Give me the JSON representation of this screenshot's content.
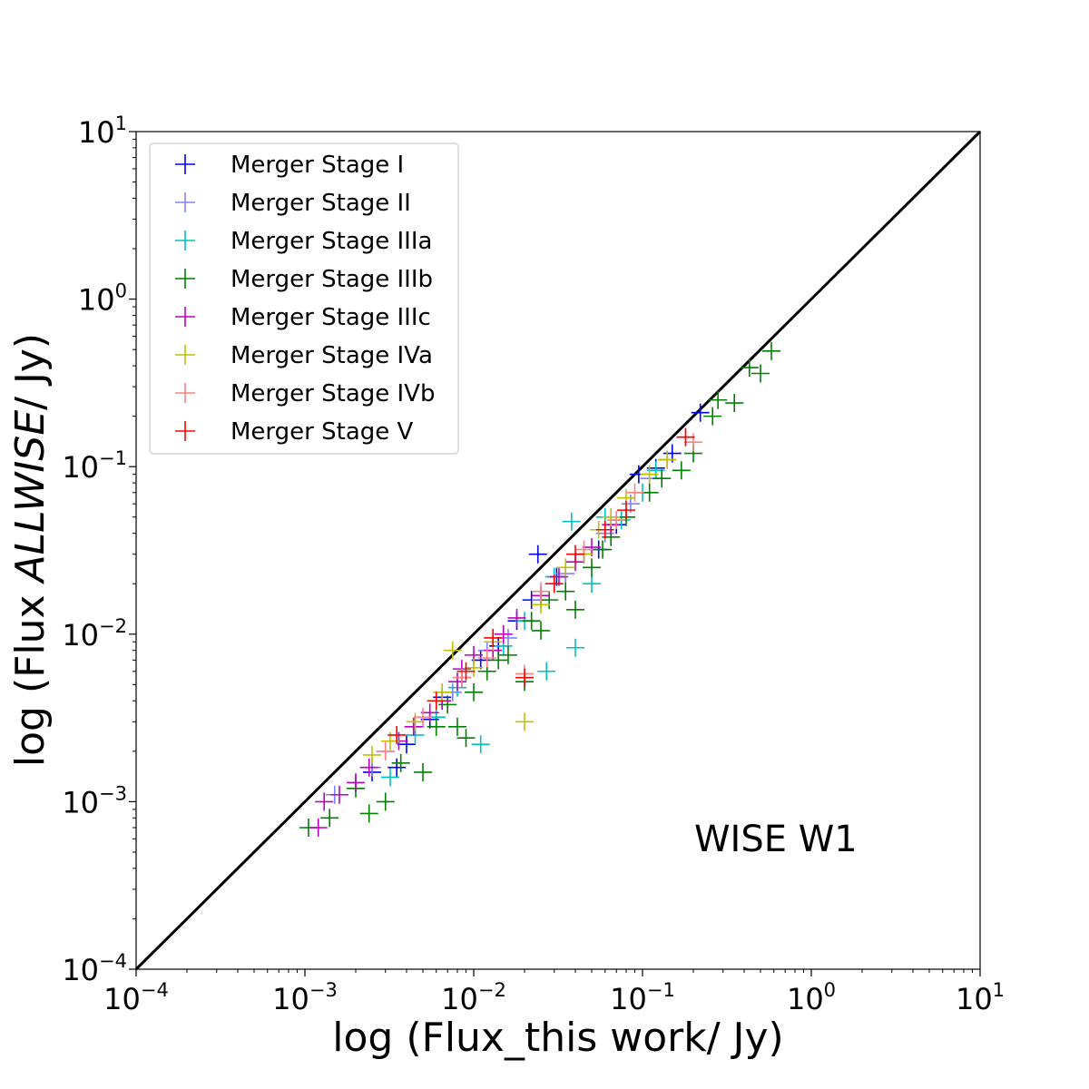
{
  "chart_data": {
    "type": "scatter",
    "xscale": "log",
    "yscale": "log",
    "xlim": [
      0.0001,
      10
    ],
    "ylim": [
      0.0001,
      10
    ],
    "xlabel": "log (Flux_this work/ Jy)",
    "ylabel_parts": [
      "log (Flux ",
      "ALLWISE",
      "/ Jy)"
    ],
    "annotation": "WISE W1",
    "reference_line": "y = x",
    "grid": false,
    "legend_position": "upper-left",
    "marker": "plus",
    "ticks": [
      {
        "base": "10",
        "exp": "−4"
      },
      {
        "base": "10",
        "exp": "−3"
      },
      {
        "base": "10",
        "exp": "−2"
      },
      {
        "base": "10",
        "exp": "−1"
      },
      {
        "base": "10",
        "exp": "0"
      },
      {
        "base": "10",
        "exp": "1"
      }
    ],
    "series": [
      {
        "name": "Merger Stage I",
        "color": "#0000ff",
        "points": [
          [
            0.0025,
            0.0015
          ],
          [
            0.0035,
            0.0016
          ],
          [
            0.004,
            0.0022
          ],
          [
            0.0055,
            0.0031
          ],
          [
            0.0065,
            0.0042
          ],
          [
            0.0085,
            0.0055
          ],
          [
            0.011,
            0.007
          ],
          [
            0.014,
            0.0085
          ],
          [
            0.018,
            0.012
          ],
          [
            0.024,
            0.03
          ],
          [
            0.022,
            0.016
          ],
          [
            0.031,
            0.022
          ],
          [
            0.045,
            0.03
          ],
          [
            0.055,
            0.032
          ],
          [
            0.07,
            0.045
          ],
          [
            0.095,
            0.09
          ],
          [
            0.12,
            0.098
          ],
          [
            0.15,
            0.12
          ],
          [
            0.22,
            0.21
          ]
        ]
      },
      {
        "name": "Merger Stage II",
        "color": "#8080ff",
        "points": [
          [
            0.0015,
            0.0011
          ],
          [
            0.0025,
            0.0016
          ],
          [
            0.0045,
            0.0028
          ],
          [
            0.0075,
            0.0045
          ],
          [
            0.012,
            0.008
          ],
          [
            0.016,
            0.0095
          ],
          [
            0.025,
            0.016
          ],
          [
            0.035,
            0.023
          ],
          [
            0.06,
            0.04
          ],
          [
            0.085,
            0.06
          ],
          [
            0.11,
            0.085
          ],
          [
            0.14,
            0.11
          ]
        ]
      },
      {
        "name": "Merger Stage IIIa",
        "color": "#00c0c0",
        "points": [
          [
            0.002,
            0.0013
          ],
          [
            0.0032,
            0.0014
          ],
          [
            0.0045,
            0.0025
          ],
          [
            0.006,
            0.0032
          ],
          [
            0.008,
            0.0048
          ],
          [
            0.011,
            0.0022
          ],
          [
            0.015,
            0.0085
          ],
          [
            0.02,
            0.012
          ],
          [
            0.027,
            0.006
          ],
          [
            0.04,
            0.0083
          ],
          [
            0.05,
            0.02
          ],
          [
            0.03,
            0.022
          ],
          [
            0.038,
            0.047
          ],
          [
            0.06,
            0.05
          ],
          [
            0.075,
            0.048
          ],
          [
            0.1,
            0.07
          ],
          [
            0.12,
            0.095
          ]
        ]
      },
      {
        "name": "Merger Stage IIIb",
        "color": "#008000",
        "points": [
          [
            0.00105,
            0.0007
          ],
          [
            0.0014,
            0.0008
          ],
          [
            0.002,
            0.0012
          ],
          [
            0.0024,
            0.00085
          ],
          [
            0.003,
            0.001
          ],
          [
            0.0037,
            0.0017
          ],
          [
            0.005,
            0.0015
          ],
          [
            0.006,
            0.0028
          ],
          [
            0.007,
            0.0038
          ],
          [
            0.008,
            0.0028
          ],
          [
            0.009,
            0.0024
          ],
          [
            0.01,
            0.0045
          ],
          [
            0.012,
            0.006
          ],
          [
            0.014,
            0.007
          ],
          [
            0.016,
            0.0075
          ],
          [
            0.02,
            0.0052
          ],
          [
            0.025,
            0.0105
          ],
          [
            0.022,
            0.012
          ],
          [
            0.028,
            0.016
          ],
          [
            0.035,
            0.018
          ],
          [
            0.04,
            0.014
          ],
          [
            0.05,
            0.025
          ],
          [
            0.058,
            0.032
          ],
          [
            0.065,
            0.038
          ],
          [
            0.08,
            0.05
          ],
          [
            0.11,
            0.07
          ],
          [
            0.13,
            0.085
          ],
          [
            0.17,
            0.095
          ],
          [
            0.2,
            0.12
          ],
          [
            0.26,
            0.2
          ],
          [
            0.28,
            0.25
          ],
          [
            0.35,
            0.24
          ],
          [
            0.43,
            0.39
          ],
          [
            0.5,
            0.36
          ],
          [
            0.58,
            0.49
          ]
        ]
      },
      {
        "name": "Merger Stage IIIc",
        "color": "#c000c0",
        "points": [
          [
            0.0012,
            0.0007
          ],
          [
            0.0013,
            0.001
          ],
          [
            0.0016,
            0.0011
          ],
          [
            0.002,
            0.0013
          ],
          [
            0.0024,
            0.0016
          ],
          [
            0.003,
            0.002
          ],
          [
            0.0036,
            0.0023
          ],
          [
            0.0044,
            0.0028
          ],
          [
            0.0055,
            0.0034
          ],
          [
            0.0065,
            0.004
          ],
          [
            0.008,
            0.0052
          ],
          [
            0.0085,
            0.0062
          ],
          [
            0.01,
            0.0075
          ],
          [
            0.013,
            0.008
          ],
          [
            0.015,
            0.01
          ],
          [
            0.018,
            0.0125
          ],
          [
            0.025,
            0.017
          ],
          [
            0.032,
            0.022
          ],
          [
            0.04,
            0.027
          ],
          [
            0.05,
            0.033
          ],
          [
            0.065,
            0.045
          ]
        ]
      },
      {
        "name": "Merger Stage IVa",
        "color": "#c0c000",
        "points": [
          [
            0.0025,
            0.0019
          ],
          [
            0.0032,
            0.0023
          ],
          [
            0.0045,
            0.003
          ],
          [
            0.0065,
            0.0045
          ],
          [
            0.0075,
            0.008
          ],
          [
            0.01,
            0.0063
          ],
          [
            0.013,
            0.009
          ],
          [
            0.02,
            0.003
          ],
          [
            0.025,
            0.015
          ],
          [
            0.035,
            0.025
          ],
          [
            0.045,
            0.03
          ],
          [
            0.055,
            0.042
          ],
          [
            0.065,
            0.05
          ],
          [
            0.08,
            0.065
          ],
          [
            0.11,
            0.09
          ],
          [
            0.14,
            0.11
          ]
        ]
      },
      {
        "name": "Merger Stage IVb",
        "color": "#ff8080",
        "points": [
          [
            0.003,
            0.002
          ],
          [
            0.005,
            0.0032
          ],
          [
            0.0085,
            0.0055
          ],
          [
            0.012,
            0.0072
          ],
          [
            0.02,
            0.0058
          ],
          [
            0.025,
            0.018
          ],
          [
            0.045,
            0.032
          ],
          [
            0.07,
            0.048
          ],
          [
            0.09,
            0.07
          ],
          [
            0.18,
            0.15
          ],
          [
            0.2,
            0.14
          ]
        ]
      },
      {
        "name": "Merger Stage V",
        "color": "#ff0000",
        "points": [
          [
            0.0035,
            0.0025
          ],
          [
            0.006,
            0.004
          ],
          [
            0.009,
            0.006
          ],
          [
            0.013,
            0.0095
          ],
          [
            0.02,
            0.0055
          ],
          [
            0.03,
            0.02
          ],
          [
            0.04,
            0.03
          ],
          [
            0.06,
            0.042
          ],
          [
            0.08,
            0.055
          ],
          [
            0.18,
            0.15
          ]
        ]
      }
    ]
  }
}
